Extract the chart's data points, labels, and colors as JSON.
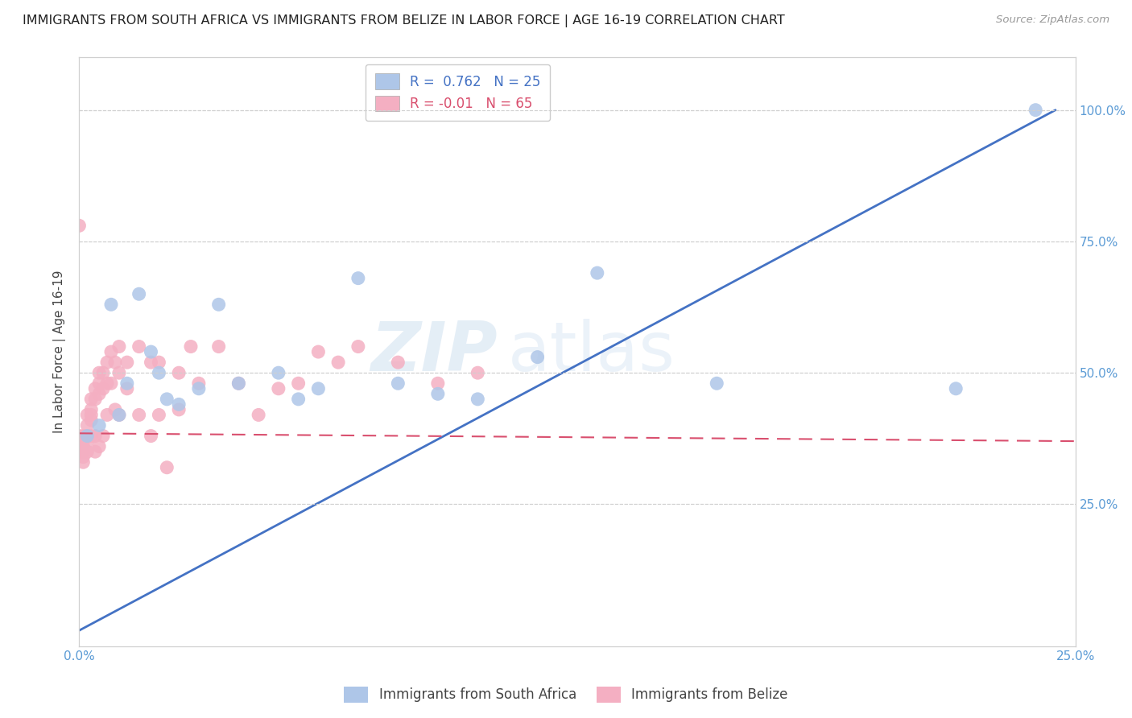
{
  "title": "IMMIGRANTS FROM SOUTH AFRICA VS IMMIGRANTS FROM BELIZE IN LABOR FORCE | AGE 16-19 CORRELATION CHART",
  "source": "Source: ZipAtlas.com",
  "ylabel": "In Labor Force | Age 16-19",
  "xlim": [
    0.0,
    0.25
  ],
  "ylim": [
    -0.02,
    1.1
  ],
  "blue_R": 0.762,
  "blue_N": 25,
  "pink_R": -0.01,
  "pink_N": 65,
  "blue_color": "#aec6e8",
  "pink_color": "#f4afc2",
  "blue_line_color": "#4472c4",
  "pink_line_color": "#d94f6e",
  "watermark_zip": "ZIP",
  "watermark_atlas": "atlas",
  "grid_color": "#d0d0d0",
  "tick_label_color": "#5b9bd5",
  "right_ytick_vals": [
    0.25,
    0.5,
    0.75,
    1.0
  ],
  "right_ytick_labels": [
    "25.0%",
    "50.0%",
    "75.0%",
    "100.0%"
  ],
  "blue_scatter_x": [
    0.002,
    0.005,
    0.008,
    0.01,
    0.012,
    0.015,
    0.018,
    0.02,
    0.022,
    0.025,
    0.03,
    0.035,
    0.04,
    0.05,
    0.055,
    0.06,
    0.07,
    0.08,
    0.09,
    0.1,
    0.115,
    0.13,
    0.16,
    0.22,
    0.24
  ],
  "blue_scatter_y": [
    0.38,
    0.4,
    0.63,
    0.42,
    0.48,
    0.65,
    0.54,
    0.5,
    0.45,
    0.44,
    0.47,
    0.63,
    0.48,
    0.5,
    0.45,
    0.47,
    0.68,
    0.48,
    0.46,
    0.45,
    0.53,
    0.69,
    0.48,
    0.47,
    1.0
  ],
  "pink_scatter_x": [
    0.0,
    0.0,
    0.0,
    0.0,
    0.001,
    0.001,
    0.001,
    0.001,
    0.001,
    0.001,
    0.002,
    0.002,
    0.002,
    0.002,
    0.002,
    0.003,
    0.003,
    0.003,
    0.003,
    0.003,
    0.004,
    0.004,
    0.004,
    0.004,
    0.005,
    0.005,
    0.005,
    0.005,
    0.006,
    0.006,
    0.006,
    0.007,
    0.007,
    0.007,
    0.008,
    0.008,
    0.009,
    0.009,
    0.01,
    0.01,
    0.01,
    0.012,
    0.012,
    0.015,
    0.015,
    0.018,
    0.018,
    0.02,
    0.02,
    0.022,
    0.025,
    0.025,
    0.028,
    0.03,
    0.035,
    0.04,
    0.045,
    0.05,
    0.055,
    0.06,
    0.065,
    0.07,
    0.08,
    0.09,
    0.1
  ],
  "pink_scatter_y": [
    0.36,
    0.37,
    0.38,
    0.35,
    0.38,
    0.37,
    0.36,
    0.35,
    0.34,
    0.33,
    0.42,
    0.4,
    0.38,
    0.37,
    0.35,
    0.45,
    0.43,
    0.42,
    0.41,
    0.38,
    0.47,
    0.45,
    0.38,
    0.35,
    0.5,
    0.48,
    0.46,
    0.36,
    0.5,
    0.47,
    0.38,
    0.52,
    0.48,
    0.42,
    0.54,
    0.48,
    0.52,
    0.43,
    0.55,
    0.5,
    0.42,
    0.52,
    0.47,
    0.55,
    0.42,
    0.52,
    0.38,
    0.52,
    0.42,
    0.32,
    0.5,
    0.43,
    0.55,
    0.48,
    0.55,
    0.48,
    0.42,
    0.47,
    0.48,
    0.54,
    0.52,
    0.55,
    0.52,
    0.48,
    0.5
  ],
  "pink_outlier_x": [
    0.0
  ],
  "pink_outlier_y": [
    0.78
  ],
  "blue_line_x": [
    0.0,
    0.245
  ],
  "blue_line_y": [
    0.01,
    1.0
  ],
  "pink_line_x": [
    0.0,
    0.25
  ],
  "pink_line_y": [
    0.385,
    0.37
  ]
}
